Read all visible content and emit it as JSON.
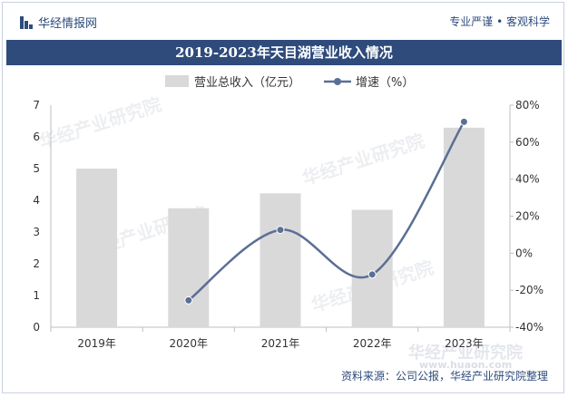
{
  "header": {
    "brand": "华经情报网",
    "slogan": "专业严谨 • 客观科学"
  },
  "chart_title": "2019-2023年天目湖营业收入情况",
  "source": "资料来源：公司公报，华经产业研究院整理",
  "watermark": "华经产业研究院",
  "watermark_url": "www.huaon.com",
  "colors": {
    "brand": "#2d4b7c",
    "title_bg": "#2f4b7b",
    "bar": "#d9d9d9",
    "line": "#5a6f95"
  },
  "chart_data": {
    "type": "bar",
    "title": "2019-2023年天目湖营业收入情况",
    "categories": [
      "2019年",
      "2020年",
      "2021年",
      "2022年",
      "2023年"
    ],
    "series": [
      {
        "name": "营业总收入（亿元）",
        "type": "bar",
        "axis": "left",
        "values": [
          5.0,
          3.75,
          4.22,
          3.7,
          6.29
        ]
      },
      {
        "name": "增速（%）",
        "type": "line",
        "axis": "right",
        "values": [
          null,
          -25.5,
          12.6,
          -11.5,
          71.0
        ]
      }
    ],
    "left_axis": {
      "min": 0,
      "max": 7,
      "ticks": [
        "0",
        "1",
        "2",
        "3",
        "4",
        "5",
        "6",
        "7"
      ]
    },
    "right_axis": {
      "min": -40,
      "max": 80,
      "ticks": [
        "-40%",
        "-20%",
        "0%",
        "20%",
        "40%",
        "60%",
        "80%"
      ]
    },
    "legend_position": "top-center",
    "grid": false
  }
}
